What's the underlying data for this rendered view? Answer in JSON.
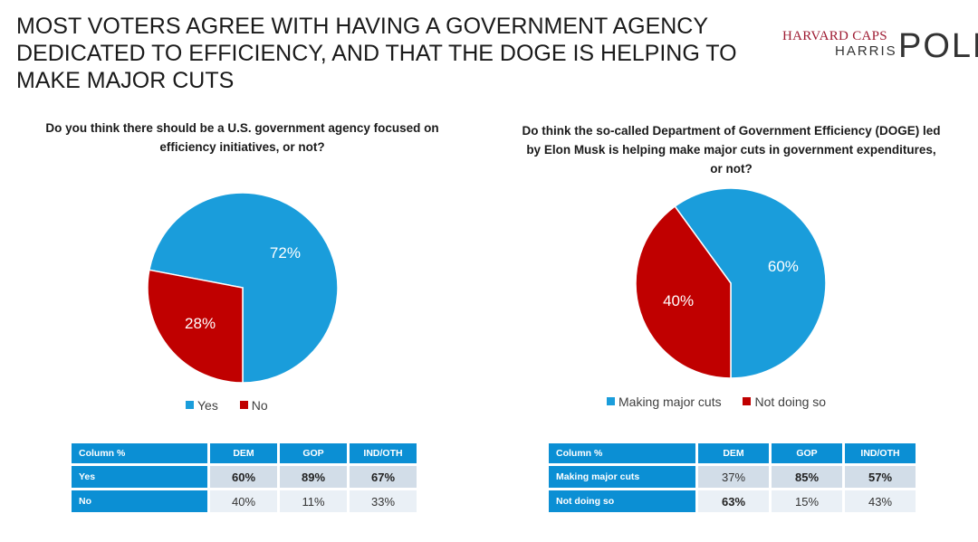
{
  "page": {
    "title": "MOST VOTERS AGREE WITH HAVING A GOVERNMENT AGENCY DEDICATED TO EFFICIENCY, AND THAT THE DOGE IS HELPING TO MAKE MAJOR CUTS"
  },
  "logo": {
    "line1": "HARVARD CAPS",
    "line2": "HARRIS",
    "word": "POLL"
  },
  "colors": {
    "blue": "#1a9ddb",
    "red": "#c00000",
    "table_header": "#0b8fd4"
  },
  "chart_data": [
    {
      "type": "pie",
      "title": "Do you think there should be a U.S. government agency focused on efficiency initiatives, or not?",
      "categories": [
        "Yes",
        "No"
      ],
      "values": [
        72,
        28
      ],
      "labels": [
        "72%",
        "28%"
      ],
      "colors": [
        "#1a9ddb",
        "#c00000"
      ],
      "legend": "bottom",
      "table": {
        "header": [
          "Column %",
          "DEM",
          "GOP",
          "IND/OTH"
        ],
        "rows": [
          {
            "label": "Yes",
            "values": [
              "60%",
              "89%",
              "67%"
            ],
            "bold": [
              true,
              true,
              true
            ]
          },
          {
            "label": "No",
            "values": [
              "40%",
              "11%",
              "33%"
            ],
            "bold": [
              false,
              false,
              false
            ]
          }
        ]
      }
    },
    {
      "type": "pie",
      "title": "Do think the so-called Department of Government Efficiency (DOGE) led by Elon Musk is helping make major cuts in  government expenditures, or not?",
      "categories": [
        "Making major cuts",
        "Not doing so"
      ],
      "values": [
        60,
        40
      ],
      "labels": [
        "60%",
        "40%"
      ],
      "colors": [
        "#1a9ddb",
        "#c00000"
      ],
      "legend": "bottom",
      "table": {
        "header": [
          "Column %",
          "DEM",
          "GOP",
          "IND/OTH"
        ],
        "rows": [
          {
            "label": "Making major cuts",
            "values": [
              "37%",
              "85%",
              "57%"
            ],
            "bold": [
              false,
              true,
              true
            ]
          },
          {
            "label": "Not doing so",
            "values": [
              "63%",
              "15%",
              "43%"
            ],
            "bold": [
              true,
              false,
              false
            ]
          }
        ]
      }
    }
  ]
}
